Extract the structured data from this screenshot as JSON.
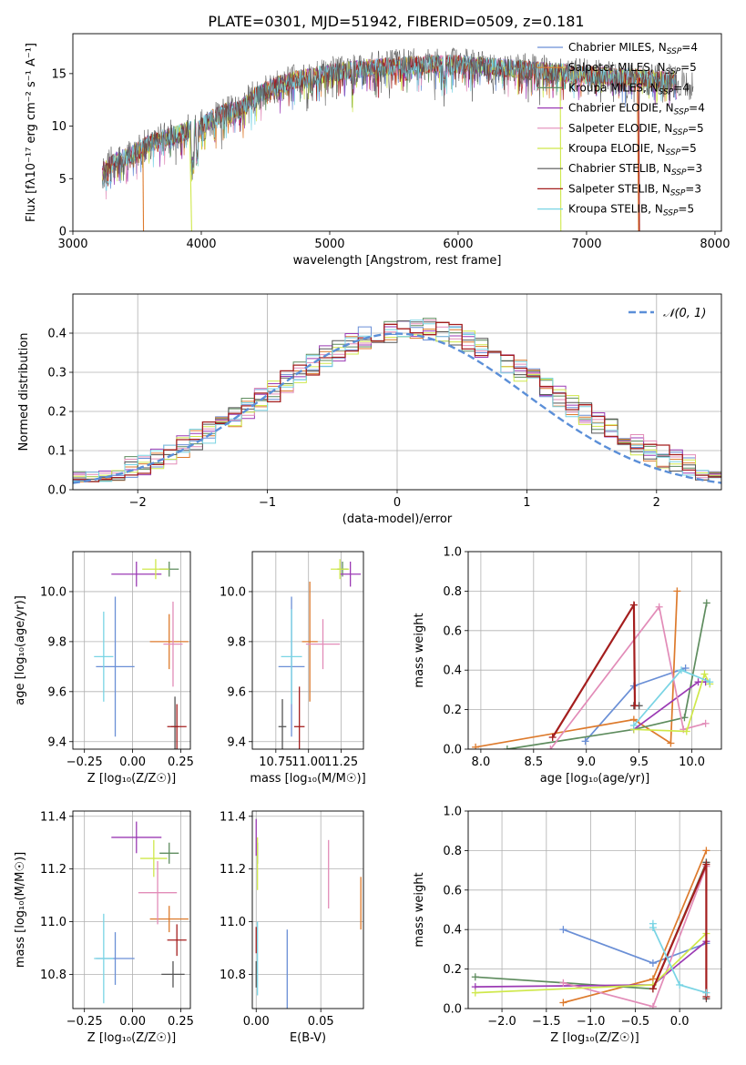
{
  "figure": {
    "title": "PLATE=0301, MJD=51942, FIBERID=0509, z=0.181"
  },
  "palette": {
    "s0": "#6a8fd6",
    "s1": "#dd7a2c",
    "s2": "#5e8c5e",
    "s3": "#9b3ab4",
    "s4": "#e28cb8",
    "s5": "#cfe84b",
    "s6": "#555555",
    "s7": "#a41e1e",
    "s8": "#79d4e4",
    "normal": "#5b8fd8",
    "grid": "#b0b0b0"
  },
  "chart_data": [
    {
      "id": "spectrum",
      "type": "line",
      "title": "PLATE=0301, MJD=51942, FIBERID=0509, z=0.181",
      "xlabel": "wavelength [Angstrom, rest frame]",
      "ylabel": "Flux [fλ10⁻¹⁷ erg cm⁻² s⁻¹ A⁻¹]",
      "xlim": [
        3000,
        8050
      ],
      "ylim": [
        0,
        18.8
      ],
      "xticks": [
        "3000",
        "4000",
        "5000",
        "6000",
        "7000",
        "8000"
      ],
      "yticks": [
        "0",
        "5",
        "10",
        "15"
      ],
      "grid": false,
      "legend_position": "top-right",
      "continuum": {
        "x": [
          3230,
          3300,
          3400,
          3500,
          3600,
          3700,
          3800,
          3900,
          4000,
          4100,
          4200,
          4300,
          4400,
          4500,
          4600,
          4700,
          4800,
          4900,
          5000,
          5200,
          5400,
          5600,
          5800,
          6000,
          6200,
          6400,
          6600,
          6800,
          7000,
          7200,
          7400,
          7600,
          7800
        ],
        "y": [
          5.5,
          6.5,
          7.0,
          7.6,
          8.4,
          8.8,
          9.2,
          9.6,
          10.0,
          10.8,
          11.4,
          11.6,
          12.7,
          13.4,
          13.9,
          14.3,
          14.6,
          14.8,
          15.1,
          15.4,
          15.6,
          15.8,
          15.9,
          15.9,
          15.7,
          15.5,
          15.3,
          15.1,
          14.9,
          14.7,
          14.6,
          14.4,
          14.2
        ]
      },
      "legend": [
        {
          "label": "Chabrier MILES, N",
          "sub": "SSP",
          "val": "=4"
        },
        {
          "label": "Salpeter MILES, N",
          "sub": "SSP",
          "val": "=5"
        },
        {
          "label": "Kroupa MILES, N",
          "sub": "SSP",
          "val": "=4"
        },
        {
          "label": "Chabrier ELODIE, N",
          "sub": "SSP",
          "val": "=4"
        },
        {
          "label": "Salpeter ELODIE, N",
          "sub": "SSP",
          "val": "=5"
        },
        {
          "label": "Kroupa ELODIE, N",
          "sub": "SSP",
          "val": "=5"
        },
        {
          "label": "Chabrier STELIB, N",
          "sub": "SSP",
          "val": "=3"
        },
        {
          "label": "Salpeter STELIB, N",
          "sub": "SSP",
          "val": "=3"
        },
        {
          "label": "Kroupa STELIB, N",
          "sub": "SSP",
          "val": "=5"
        }
      ]
    },
    {
      "id": "residuals",
      "type": "area",
      "xlabel": "(data-model)/error",
      "ylabel": "Normed distribution",
      "xlim": [
        -2.5,
        2.5
      ],
      "ylim": [
        0,
        0.5
      ],
      "xticks": [
        "-2",
        "-1",
        "0",
        "1",
        "2"
      ],
      "yticks": [
        "0.0",
        "0.1",
        "0.2",
        "0.3",
        "0.4"
      ],
      "grid": true,
      "legend_position": "top-right",
      "legend": "𝒩(0, 1)"
    },
    {
      "id": "z-age",
      "type": "scatter",
      "xlabel": "Z [log₁₀(Z/Z☉)]",
      "ylabel": "age  [log₁₀(age/yr)]",
      "xlim": [
        -0.31,
        0.3
      ],
      "ylim": [
        9.37,
        10.16
      ],
      "xticks": [
        "-0.25",
        "0.00",
        "0.25"
      ],
      "yticks": [
        "9.4",
        "9.6",
        "9.8",
        "10.0"
      ],
      "grid": true,
      "points": [
        {
          "s": 0,
          "x": -0.09,
          "y": 9.7,
          "xe": 0.1,
          "ye": 0.28
        },
        {
          "s": 1,
          "x": 0.19,
          "y": 9.8,
          "xe": 0.1,
          "ye": 0.11
        },
        {
          "s": 2,
          "x": 0.19,
          "y": 10.09,
          "xe": 0.05,
          "ye": 0.03
        },
        {
          "s": 3,
          "x": 0.02,
          "y": 10.07,
          "xe": 0.13,
          "ye": 0.05
        },
        {
          "s": 4,
          "x": 0.21,
          "y": 9.79,
          "xe": 0.05,
          "ye": 0.17
        },
        {
          "s": 5,
          "x": 0.12,
          "y": 10.09,
          "xe": 0.07,
          "ye": 0.04
        },
        {
          "s": 6,
          "x": 0.22,
          "y": 9.46,
          "xe": 0.02,
          "ye": 0.12
        },
        {
          "s": 7,
          "x": 0.23,
          "y": 9.46,
          "xe": 0.05,
          "ye": 0.09
        },
        {
          "s": 8,
          "x": -0.15,
          "y": 9.74,
          "xe": 0.05,
          "ye": 0.18
        }
      ]
    },
    {
      "id": "mass-age",
      "type": "scatter",
      "xlabel": "mass [log₁₀(M/M☉)]",
      "ylabel": "",
      "xlim": [
        10.57,
        11.42
      ],
      "ylim": [
        9.37,
        10.16
      ],
      "xticks": [
        "10.75",
        "11.00",
        "11.25"
      ],
      "yticks": [
        "9.4",
        "9.6",
        "9.8",
        "10.0"
      ],
      "grid": true,
      "points": [
        {
          "s": 0,
          "x": 10.87,
          "y": 9.7,
          "xe": 0.1,
          "ye": 0.28
        },
        {
          "s": 1,
          "x": 11.01,
          "y": 9.8,
          "xe": 0.06,
          "ye": 0.24
        },
        {
          "s": 2,
          "x": 11.26,
          "y": 10.09,
          "xe": 0.04,
          "ye": 0.03
        },
        {
          "s": 3,
          "x": 11.32,
          "y": 10.07,
          "xe": 0.08,
          "ye": 0.05
        },
        {
          "s": 4,
          "x": 11.11,
          "y": 9.79,
          "xe": 0.13,
          "ye": 0.1
        },
        {
          "s": 5,
          "x": 11.24,
          "y": 10.09,
          "xe": 0.07,
          "ye": 0.04
        },
        {
          "s": 6,
          "x": 10.8,
          "y": 9.46,
          "xe": 0.03,
          "ye": 0.11
        },
        {
          "s": 7,
          "x": 10.93,
          "y": 9.46,
          "xe": 0.04,
          "ye": 0.16
        },
        {
          "s": 8,
          "x": 10.87,
          "y": 9.74,
          "xe": 0.08,
          "ye": 0.19
        }
      ]
    },
    {
      "id": "age-weight",
      "type": "line",
      "xlabel": "age  [log₁₀(age/yr)]",
      "ylabel": "mass weight",
      "xlim": [
        7.88,
        10.28
      ],
      "ylim": [
        0,
        1.0
      ],
      "xticks": [
        "8.0",
        "8.5",
        "9.0",
        "9.5",
        "10.0"
      ],
      "yticks": [
        "0.0",
        "0.2",
        "0.4",
        "0.6",
        "0.8",
        "1.0"
      ],
      "grid": true,
      "series": [
        {
          "s": 0,
          "x": [
            8.99,
            9.45,
            9.94
          ],
          "y": [
            0.04,
            0.32,
            0.41
          ]
        },
        {
          "s": 1,
          "x": 7.95,
          "xs": [
            7.95,
            9.45,
            9.8,
            9.86
          ],
          "y": [
            0.01,
            0.15,
            0.03,
            0.8
          ]
        },
        {
          "s": 2,
          "x": [
            8.25,
            9.45,
            9.93,
            10.14
          ],
          "y": [
            0.0,
            0.1,
            0.16,
            0.74
          ]
        },
        {
          "s": 3,
          "x": [
            9.45,
            10.06,
            10.13
          ],
          "y": [
            0.1,
            0.34,
            0.34
          ]
        },
        {
          "s": 4,
          "x": [
            8.66,
            9.69,
            9.92,
            10.13
          ],
          "y": [
            0.0,
            0.72,
            0.1,
            0.13
          ]
        },
        {
          "s": 5,
          "x": [
            9.45,
            9.95,
            10.12,
            10.17
          ],
          "y": [
            0.1,
            0.09,
            0.38,
            0.33
          ]
        },
        {
          "s": 6,
          "x": [
            9.45,
            9.5
          ],
          "y": [
            0.22,
            0.22
          ]
        },
        {
          "s": 7,
          "x": [
            8.68,
            9.45,
            9.46
          ],
          "y": [
            0.06,
            0.73,
            0.22
          ]
        },
        {
          "s": 8,
          "x": [
            9.45,
            9.9,
            10.17
          ],
          "y": [
            0.12,
            0.4,
            0.34
          ]
        }
      ]
    },
    {
      "id": "z-mass",
      "type": "scatter",
      "xlabel": "Z [log₁₀(Z/Z☉)]",
      "ylabel": "mass [log₁₀(M/M☉)]",
      "xlim": [
        -0.31,
        0.3
      ],
      "ylim": [
        10.67,
        11.42
      ],
      "xticks": [
        "-0.25",
        "0.00",
        "0.25"
      ],
      "yticks": [
        "10.8",
        "11.0",
        "11.2",
        "11.4"
      ],
      "grid": true,
      "points": [
        {
          "s": 0,
          "x": -0.09,
          "y": 10.86,
          "xe": 0.1,
          "ye": 0.1
        },
        {
          "s": 1,
          "x": 0.19,
          "y": 11.01,
          "xe": 0.1,
          "ye": 0.05
        },
        {
          "s": 2,
          "x": 0.19,
          "y": 11.26,
          "xe": 0.05,
          "ye": 0.04
        },
        {
          "s": 3,
          "x": 0.02,
          "y": 11.32,
          "xe": 0.13,
          "ye": 0.06
        },
        {
          "s": 4,
          "x": 0.13,
          "y": 11.11,
          "xe": 0.1,
          "ye": 0.12
        },
        {
          "s": 5,
          "x": 0.11,
          "y": 11.24,
          "xe": 0.07,
          "ye": 0.07
        },
        {
          "s": 6,
          "x": 0.21,
          "y": 10.8,
          "xe": 0.06,
          "ye": 0.05
        },
        {
          "s": 7,
          "x": 0.23,
          "y": 10.93,
          "xe": 0.05,
          "ye": 0.06
        },
        {
          "s": 8,
          "x": -0.15,
          "y": 10.86,
          "xe": 0.05,
          "ye": 0.17
        }
      ]
    },
    {
      "id": "ebv-mass",
      "type": "scatter",
      "xlabel": "E(B-V)",
      "ylabel": "",
      "xlim": [
        -0.003,
        0.083
      ],
      "ylim": [
        10.67,
        11.42
      ],
      "xticks": [
        "0.00",
        "0.05"
      ],
      "yticks": [
        "10.8",
        "11.0",
        "11.2",
        "11.4"
      ],
      "grid": true,
      "points": [
        {
          "s": 0,
          "x": 0.024,
          "y": 10.81,
          "xe": 0,
          "ye": 0.16
        },
        {
          "s": 1,
          "x": 0.081,
          "y": 11.07,
          "xe": 0,
          "ye": 0.1
        },
        {
          "s": 2,
          "x": 0.001,
          "y": 11.26,
          "xe": 0,
          "ye": 0.04
        },
        {
          "s": 3,
          "x": 0.0,
          "y": 11.32,
          "xe": 0,
          "ye": 0.07
        },
        {
          "s": 4,
          "x": 0.056,
          "y": 11.18,
          "xe": 0,
          "ye": 0.13
        },
        {
          "s": 5,
          "x": 0.001,
          "y": 11.22,
          "xe": 0,
          "ye": 0.1
        },
        {
          "s": 6,
          "x": 0.0,
          "y": 10.8,
          "xe": 0,
          "ye": 0.05
        },
        {
          "s": 7,
          "x": 0.0,
          "y": 10.93,
          "xe": 0,
          "ye": 0.05
        },
        {
          "s": 8,
          "x": 0.001,
          "y": 10.86,
          "xe": 0,
          "ye": 0.14
        }
      ]
    },
    {
      "id": "z-weight",
      "type": "line",
      "xlabel": "Z [log₁₀(Z/Z☉)]",
      "ylabel": "mass weight",
      "xlim": [
        -2.38,
        0.47
      ],
      "ylim": [
        0,
        1.0
      ],
      "xticks": [
        "-2.0",
        "-1.5",
        "-1.0",
        "-0.5",
        "0.0"
      ],
      "yticks": [
        "0.0",
        "0.2",
        "0.4",
        "0.6",
        "0.8",
        "1.0"
      ],
      "grid": true,
      "series": [
        {
          "s": 0,
          "x": [
            -1.31,
            -0.3,
            0.3
          ],
          "y": [
            0.4,
            0.23,
            0.33
          ]
        },
        {
          "s": 1,
          "x": [
            -1.31,
            -0.3,
            0.3
          ],
          "y": [
            0.03,
            0.15,
            0.8
          ]
        },
        {
          "s": 2,
          "x": [
            -2.3,
            -0.3,
            0.3
          ],
          "y": [
            0.16,
            0.1,
            0.74
          ]
        },
        {
          "s": 3,
          "x": [
            -2.3,
            -0.3,
            0.3
          ],
          "y": [
            0.11,
            0.12,
            0.34
          ]
        },
        {
          "s": 4,
          "x": [
            -1.31,
            -0.3,
            0.3
          ],
          "y": [
            0.13,
            0.01,
            0.72
          ]
        },
        {
          "s": 5,
          "x": [
            -2.3,
            -0.3,
            0.3
          ],
          "y": [
            0.08,
            0.12,
            0.38
          ]
        },
        {
          "s": 6,
          "x": [
            0.3,
            0.3
          ],
          "y": [
            0.05,
            0.74
          ]
        },
        {
          "s": 7,
          "x": [
            -0.3,
            0.3,
            0.3
          ],
          "y": [
            0.1,
            0.73,
            0.06
          ]
        },
        {
          "s": 8,
          "x": [
            -0.3,
            -0.3,
            0.0,
            0.3
          ],
          "y": [
            0.43,
            0.41,
            0.12,
            0.08
          ]
        }
      ]
    }
  ]
}
